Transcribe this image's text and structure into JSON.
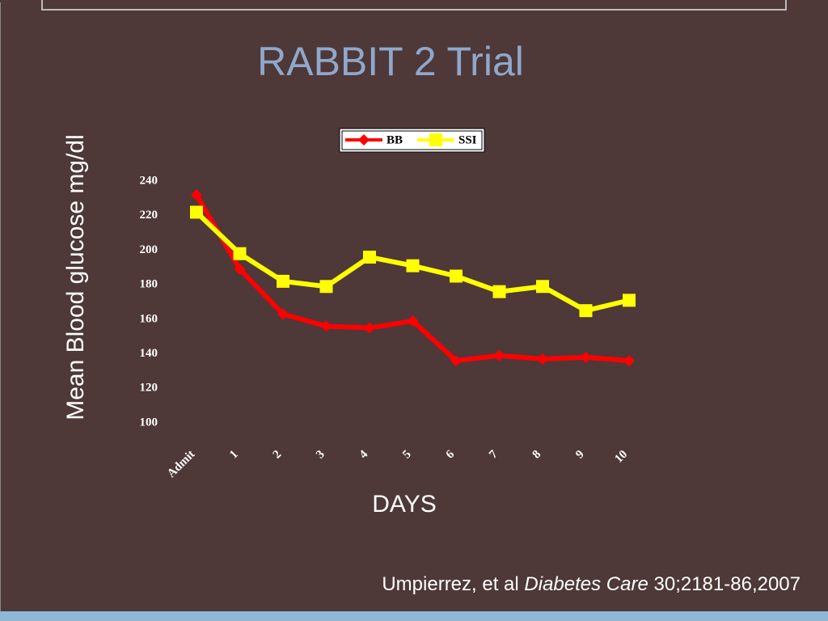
{
  "chart_data": {
    "type": "line",
    "title": "RABBIT 2 Trial",
    "y_label": "Mean Blood glucose mg/dl",
    "x_label": "DAYS",
    "categories": [
      "Admit",
      "1",
      "2",
      "3",
      "4",
      "5",
      "6",
      "7",
      "8",
      "9",
      "10"
    ],
    "series": [
      {
        "name": "BB",
        "color": "#ff0000",
        "marker": "diamond",
        "values": [
          232,
          189,
          163,
          156,
          155,
          159,
          136,
          139,
          137,
          138,
          136
        ]
      },
      {
        "name": "SSI",
        "color": "#ffff00",
        "marker": "square",
        "values": [
          222,
          198,
          182,
          179,
          196,
          191,
          185,
          176,
          179,
          165,
          171
        ]
      }
    ],
    "ylim": [
      100,
      240
    ],
    "yticks": [
      100,
      120,
      140,
      160,
      180,
      200,
      220,
      240
    ],
    "grid": false,
    "legend": "top"
  },
  "citation": {
    "authors": "Umpierrez, et al",
    "journal": "Diabetes Care",
    "details": "30;2181-86,2007"
  }
}
